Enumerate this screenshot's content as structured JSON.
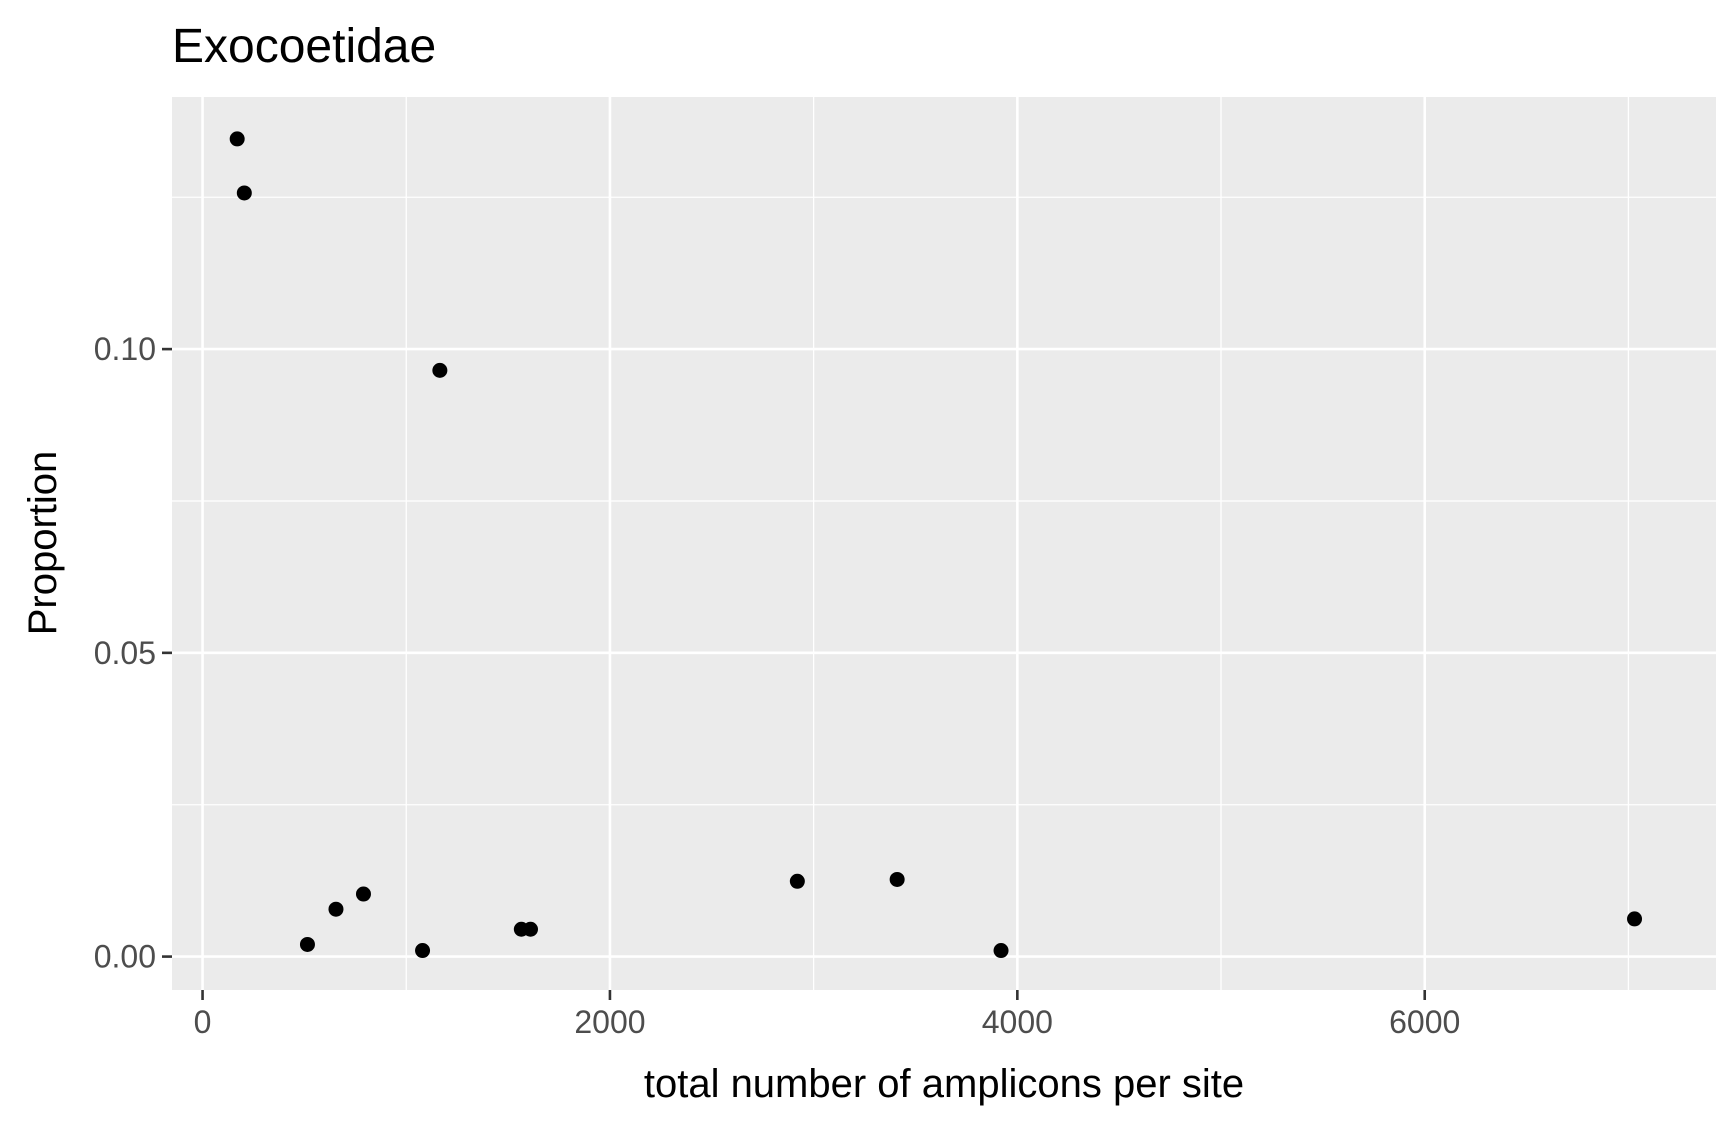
{
  "chart_data": {
    "type": "scatter",
    "title": "Exocoetidae",
    "xlabel": "total number of amplicons per site",
    "ylabel": "Proportion",
    "xlim": [
      -150,
      7430
    ],
    "ylim": [
      -0.0055,
      0.1415
    ],
    "x_ticks": [
      0,
      2000,
      4000,
      6000
    ],
    "x_tick_labels": [
      "0",
      "2000",
      "4000",
      "6000"
    ],
    "x_minor_ticks": [
      1000,
      3000,
      5000,
      7000
    ],
    "y_ticks": [
      0.0,
      0.05,
      0.1
    ],
    "y_tick_labels": [
      "0.00",
      "0.05",
      "0.10"
    ],
    "y_minor_ticks": [
      0.025,
      0.075,
      0.125
    ],
    "grid": true,
    "point_color": "#000000",
    "panel_background": "#EBEBEB",
    "points": [
      {
        "x": 170,
        "y": 0.1346
      },
      {
        "x": 205,
        "y": 0.1257
      },
      {
        "x": 515,
        "y": 0.002
      },
      {
        "x": 655,
        "y": 0.0078
      },
      {
        "x": 790,
        "y": 0.0103
      },
      {
        "x": 1080,
        "y": 0.001
      },
      {
        "x": 1165,
        "y": 0.0965
      },
      {
        "x": 1565,
        "y": 0.0045
      },
      {
        "x": 1610,
        "y": 0.0045
      },
      {
        "x": 2920,
        "y": 0.0124
      },
      {
        "x": 3410,
        "y": 0.0127
      },
      {
        "x": 3920,
        "y": 0.001
      },
      {
        "x": 7030,
        "y": 0.0062
      }
    ]
  }
}
